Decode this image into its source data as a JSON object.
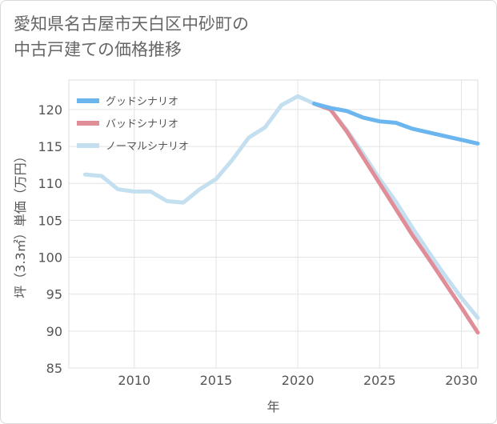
{
  "title": {
    "line1": "愛知県名古屋市天白区中砂町の",
    "line2": "中古戸建ての価格推移"
  },
  "chart_data": {
    "type": "line",
    "xlabel": "年",
    "ylabel": "坪（3.3㎡）単価（万円）",
    "xlim": [
      2006,
      2031
    ],
    "ylim": [
      85,
      124
    ],
    "xticks": [
      2010,
      2015,
      2020,
      2025,
      2030
    ],
    "yticks": [
      85,
      90,
      95,
      100,
      105,
      110,
      115,
      120
    ],
    "grid": true,
    "legend_position": "top-left",
    "series": [
      {
        "name": "グッドシナリオ",
        "color": "#6cb6ef",
        "x": [
          2021,
          2022,
          2023,
          2024,
          2025,
          2026,
          2027,
          2028,
          2029,
          2030,
          2031
        ],
        "values": [
          120.8,
          120.2,
          119.8,
          118.9,
          118.4,
          118.2,
          117.4,
          116.9,
          116.4,
          115.9,
          115.4
        ]
      },
      {
        "name": "バッドシナリオ",
        "color": "#e08d97",
        "x": [
          2021,
          2022,
          2023,
          2024,
          2025,
          2026,
          2027,
          2028,
          2029,
          2030,
          2031
        ],
        "values": [
          120.8,
          120.0,
          117.0,
          113.5,
          110.0,
          106.5,
          103.0,
          99.8,
          96.5,
          93.2,
          89.8
        ]
      },
      {
        "name": "ノーマルシナリオ",
        "color": "#c3dff0",
        "x": [
          2007,
          2008,
          2009,
          2010,
          2011,
          2012,
          2013,
          2014,
          2015,
          2016,
          2017,
          2018,
          2019,
          2020,
          2021,
          2022,
          2023,
          2024,
          2025,
          2026,
          2027,
          2028,
          2029,
          2030,
          2031
        ],
        "values": [
          111.2,
          111.0,
          109.2,
          108.9,
          108.9,
          107.6,
          107.4,
          109.2,
          110.6,
          113.2,
          116.2,
          117.6,
          120.6,
          121.8,
          120.8,
          120.0,
          117.2,
          114.0,
          110.6,
          107.5,
          104.0,
          100.7,
          97.5,
          94.5,
          91.8
        ]
      }
    ]
  }
}
